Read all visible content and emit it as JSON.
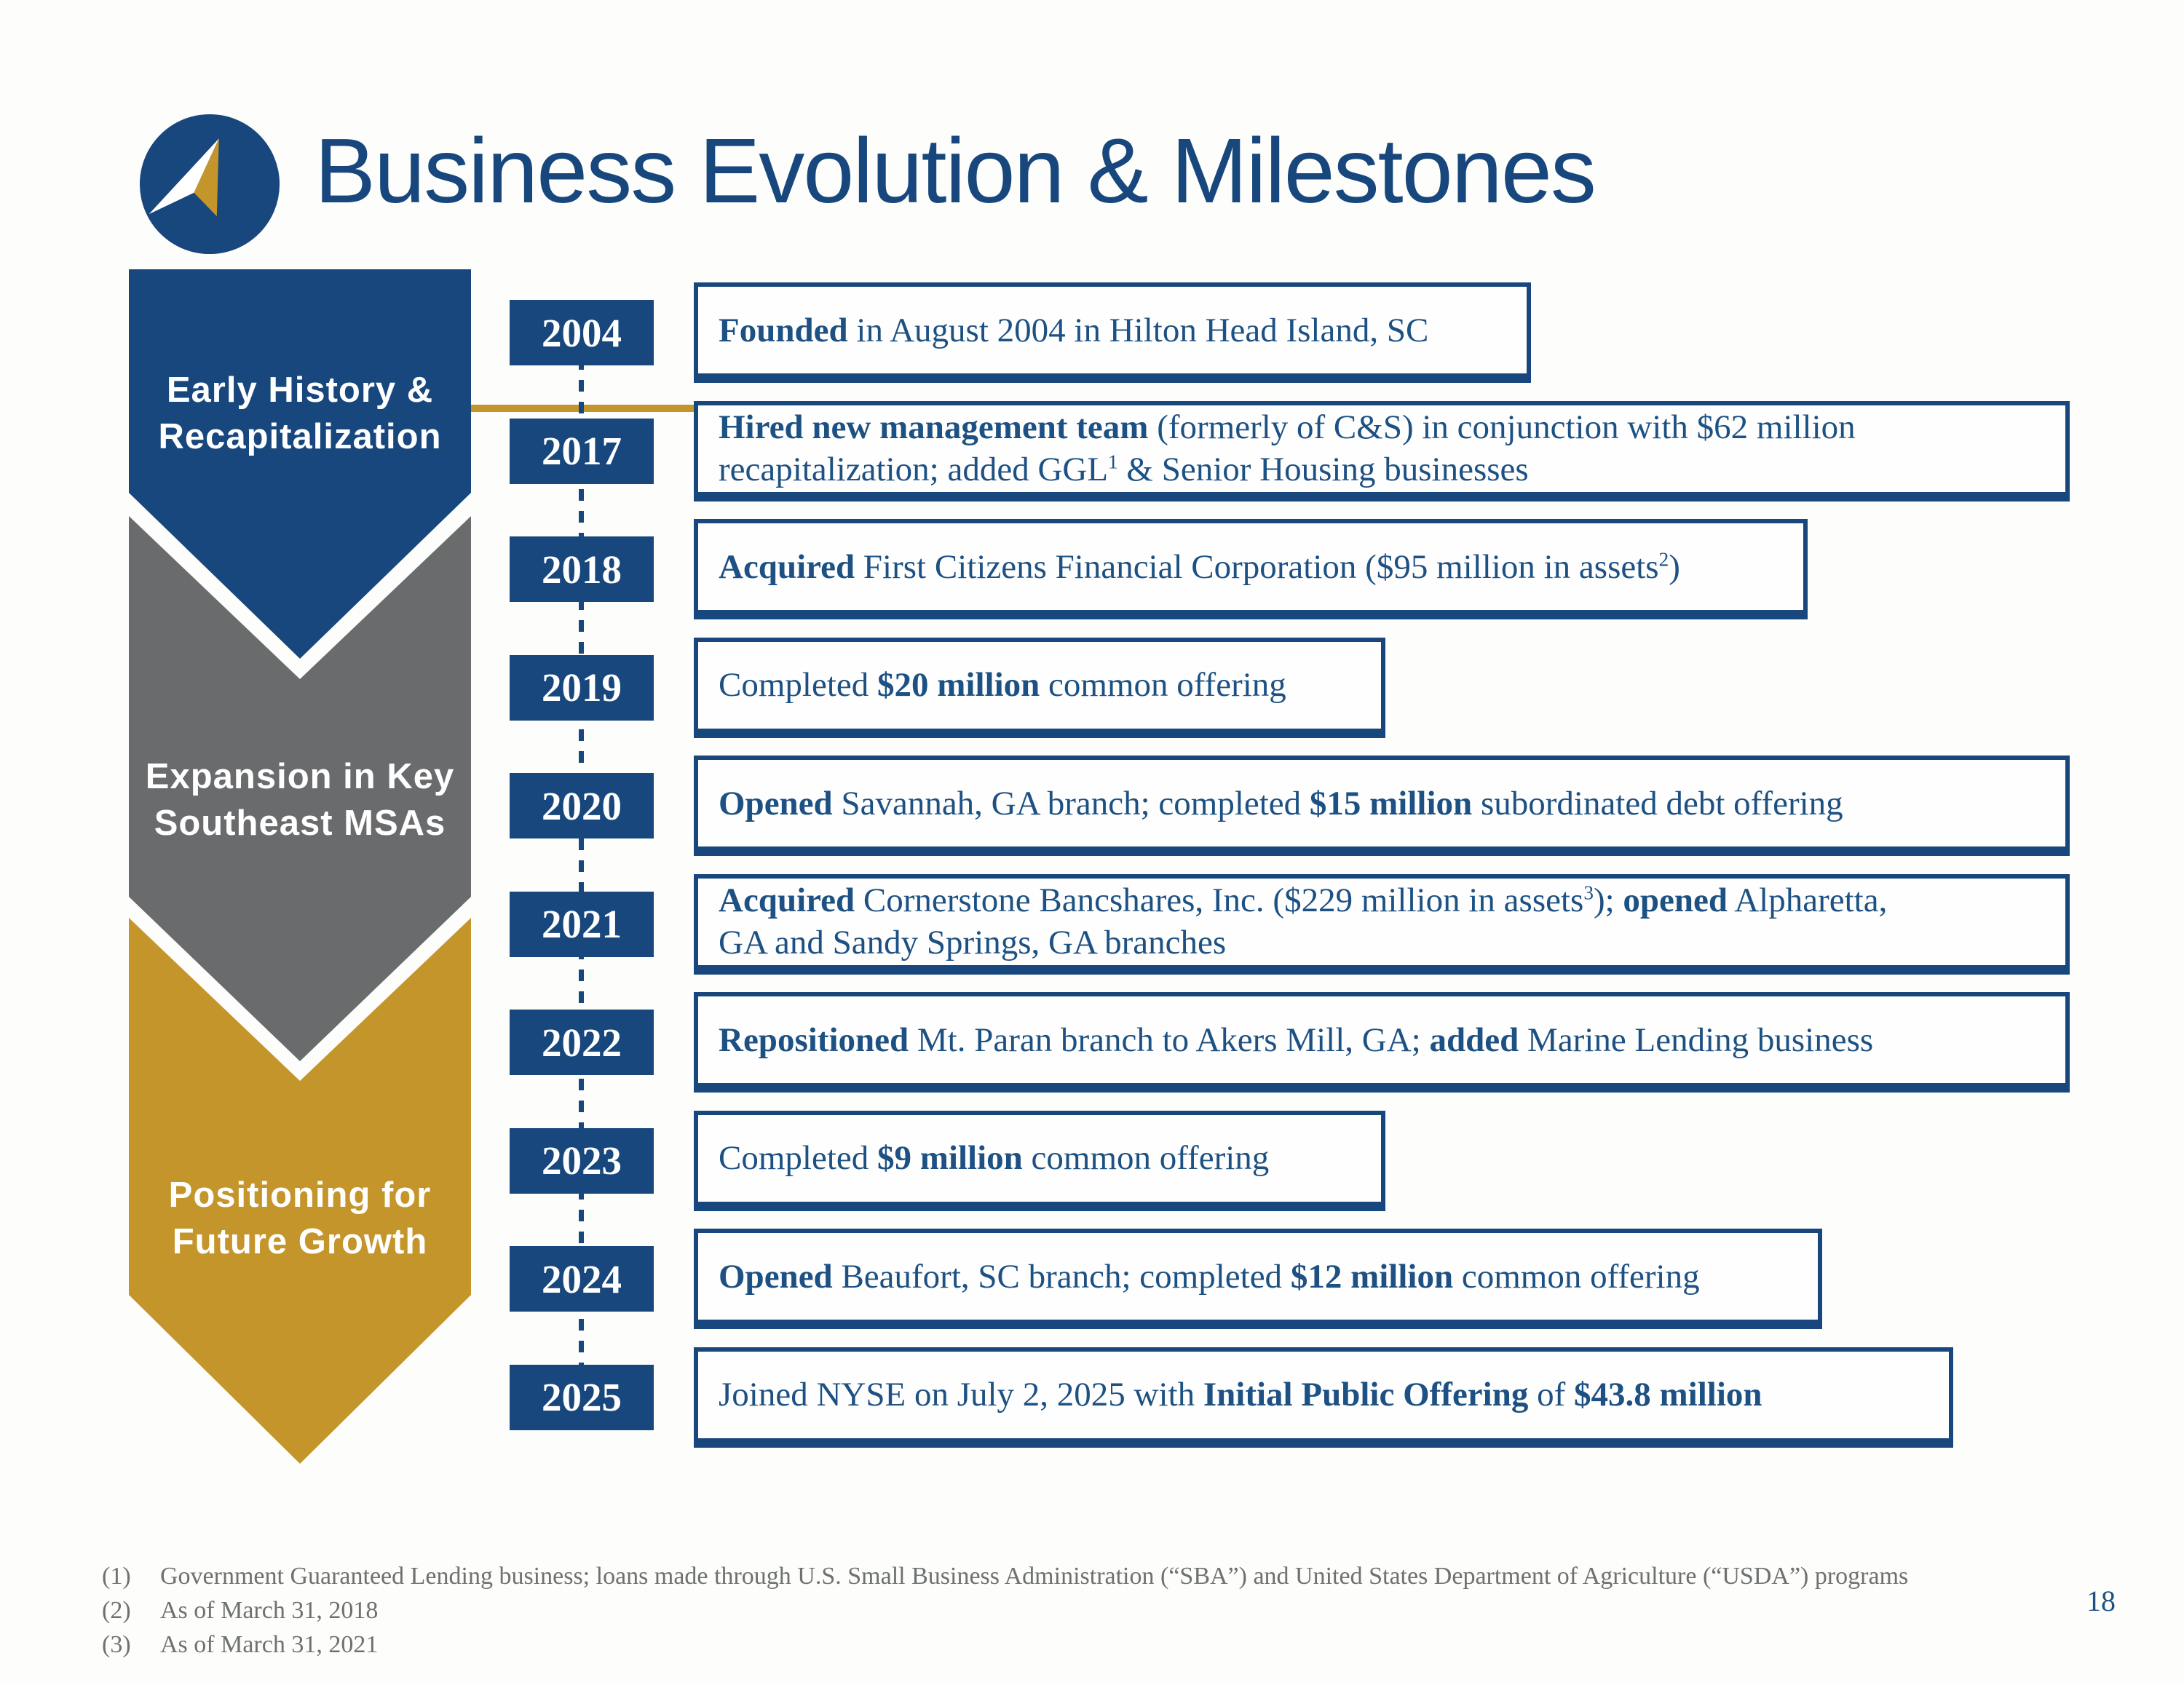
{
  "header": {
    "title": "Business Evolution & Milestones"
  },
  "colors": {
    "navy": "#17477C",
    "text_blue": "#1D5183",
    "gray": "#6A6B6D",
    "gold": "#C4952B",
    "footnote_gray": "#6D7170",
    "white": "#FFFFFF"
  },
  "phases": [
    {
      "id": "early-history",
      "line1": "Early History &",
      "line2": "Recapitalization",
      "color": "#17477C"
    },
    {
      "id": "expansion",
      "line1": "Expansion in Key",
      "line2": "Southeast MSAs",
      "color": "#6A6B6D"
    },
    {
      "id": "positioning",
      "line1": "Positioning for",
      "line2": "Future Growth",
      "color": "#C4952B"
    }
  ],
  "timeline": [
    {
      "year": "2004",
      "segments": [
        {
          "t": "Founded",
          "b": 1
        },
        {
          "t": " in August 2004 in Hilton Head Island, SC"
        }
      ]
    },
    {
      "year": "2017",
      "segments": [
        {
          "t": "Hired new management team",
          "b": 1
        },
        {
          "t": " (formerly of C&S) in conjunction with $62 million"
        },
        {
          "br": 1
        },
        {
          "t": "recapitalization; added GGL"
        },
        {
          "t": "1",
          "sup": 1
        },
        {
          "t": " & Senior Housing businesses"
        }
      ]
    },
    {
      "year": "2018",
      "segments": [
        {
          "t": "Acquired",
          "b": 1
        },
        {
          "t": " First Citizens Financial Corporation ($95 million in assets"
        },
        {
          "t": "2",
          "sup": 1
        },
        {
          "t": ")"
        }
      ]
    },
    {
      "year": "2019",
      "segments": [
        {
          "t": "Completed "
        },
        {
          "t": "$20 million",
          "b": 1
        },
        {
          "t": " common offering"
        }
      ]
    },
    {
      "year": "2020",
      "segments": [
        {
          "t": "Opened",
          "b": 1
        },
        {
          "t": " Savannah, GA branch; completed "
        },
        {
          "t": "$15 million",
          "b": 1
        },
        {
          "t": " subordinated debt offering"
        }
      ]
    },
    {
      "year": "2021",
      "segments": [
        {
          "t": "Acquired",
          "b": 1
        },
        {
          "t": " Cornerstone Bancshares, Inc. ($229 million in assets"
        },
        {
          "t": "3",
          "sup": 1
        },
        {
          "t": "); "
        },
        {
          "t": "opened",
          "b": 1
        },
        {
          "t": " Alpharetta,"
        },
        {
          "br": 1
        },
        {
          "t": "GA and Sandy Springs, GA branches"
        }
      ]
    },
    {
      "year": "2022",
      "segments": [
        {
          "t": "Repositioned",
          "b": 1
        },
        {
          "t": " Mt. Paran branch to Akers Mill, GA; "
        },
        {
          "t": "added",
          "b": 1
        },
        {
          "t": " Marine Lending business"
        }
      ]
    },
    {
      "year": "2023",
      "segments": [
        {
          "t": "Completed "
        },
        {
          "t": "$9 million",
          "b": 1
        },
        {
          "t": " common offering"
        }
      ]
    },
    {
      "year": "2024",
      "segments": [
        {
          "t": "Opened",
          "b": 1
        },
        {
          "t": " Beaufort, SC branch; completed "
        },
        {
          "t": "$12 million",
          "b": 1
        },
        {
          "t": " common offering"
        }
      ]
    },
    {
      "year": "2025",
      "segments": [
        {
          "t": "Joined NYSE on July 2, 2025 with "
        },
        {
          "t": "Initial Public Offering",
          "b": 1
        },
        {
          "t": " of "
        },
        {
          "t": "$43.8 million",
          "b": 1
        }
      ]
    }
  ],
  "footnotes": [
    {
      "marker": "(1)",
      "text": "Government Guaranteed Lending business; loans made through U.S. Small Business Administration (“SBA”) and United States Department of Agriculture (“USDA”) programs"
    },
    {
      "marker": "(2)",
      "text": "As of March 31, 2018"
    },
    {
      "marker": "(3)",
      "text": "As of March 31, 2021"
    }
  ],
  "page_number": "18"
}
